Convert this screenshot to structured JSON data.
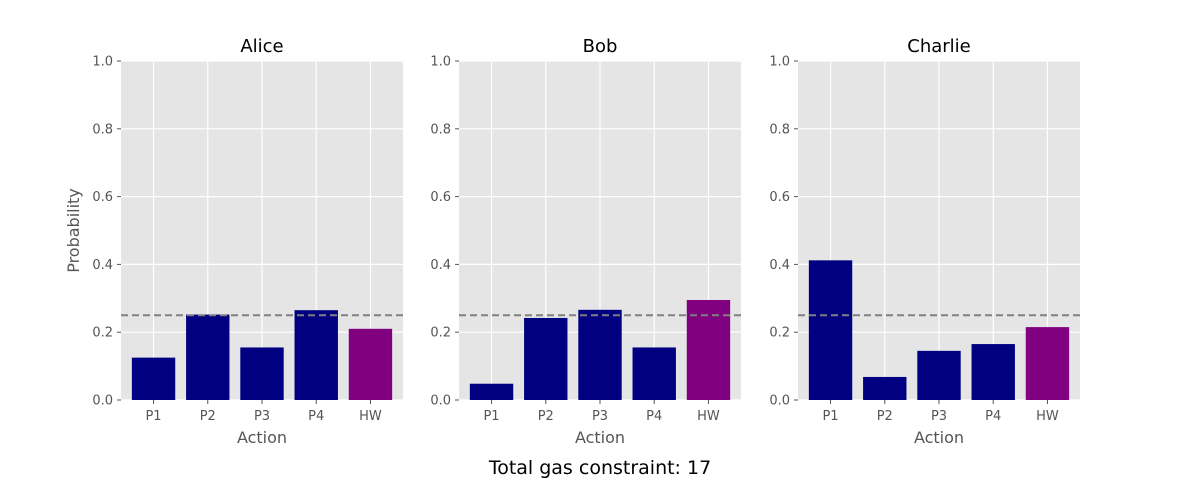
{
  "chart_data": {
    "type": "bar",
    "categories": [
      "P1",
      "P2",
      "P3",
      "P4",
      "HW"
    ],
    "xlabel": "Action",
    "ylabel": "Probability",
    "ylim": [
      0,
      1.0
    ],
    "yticks": [
      "0.0",
      "0.2",
      "0.4",
      "0.6",
      "0.8",
      "1.0"
    ],
    "reference_line": 0.25,
    "grid": true,
    "colors": {
      "default": "#000080",
      "highlight": "#800080",
      "background": "#e5e5e5",
      "reference": "#808080"
    },
    "highlight_category": "HW",
    "panels": [
      {
        "title": "Alice",
        "values": [
          0.125,
          0.252,
          0.155,
          0.265,
          0.21
        ]
      },
      {
        "title": "Bob",
        "values": [
          0.048,
          0.242,
          0.266,
          0.155,
          0.295
        ]
      },
      {
        "title": "Charlie",
        "values": [
          0.412,
          0.068,
          0.145,
          0.165,
          0.215
        ]
      }
    ],
    "footer": "Total gas constraint: 17"
  }
}
